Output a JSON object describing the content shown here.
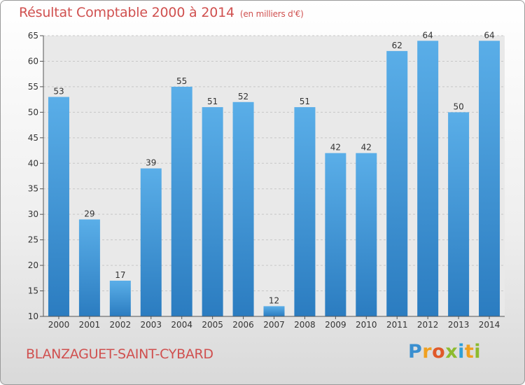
{
  "chart_data": {
    "type": "bar",
    "title": "Résultat Comptable 2000 à 2014",
    "unit_label": "(en milliers d'€)",
    "categories": [
      "2000",
      "2001",
      "2002",
      "2003",
      "2004",
      "2005",
      "2006",
      "2007",
      "2008",
      "2009",
      "2010",
      "2011",
      "2012",
      "2013",
      "2014"
    ],
    "values": [
      53,
      29,
      17,
      39,
      55,
      51,
      52,
      12,
      51,
      42,
      42,
      62,
      64,
      50,
      64
    ],
    "ylim": [
      10,
      65
    ],
    "yticks": [
      10,
      15,
      20,
      25,
      30,
      35,
      40,
      45,
      50,
      55,
      60,
      65
    ],
    "grid": true,
    "bar_color": "#3b8fd6"
  },
  "commune": "BLANZAGUET-SAINT-CYBARD",
  "logo": {
    "text": "Proxiti"
  }
}
